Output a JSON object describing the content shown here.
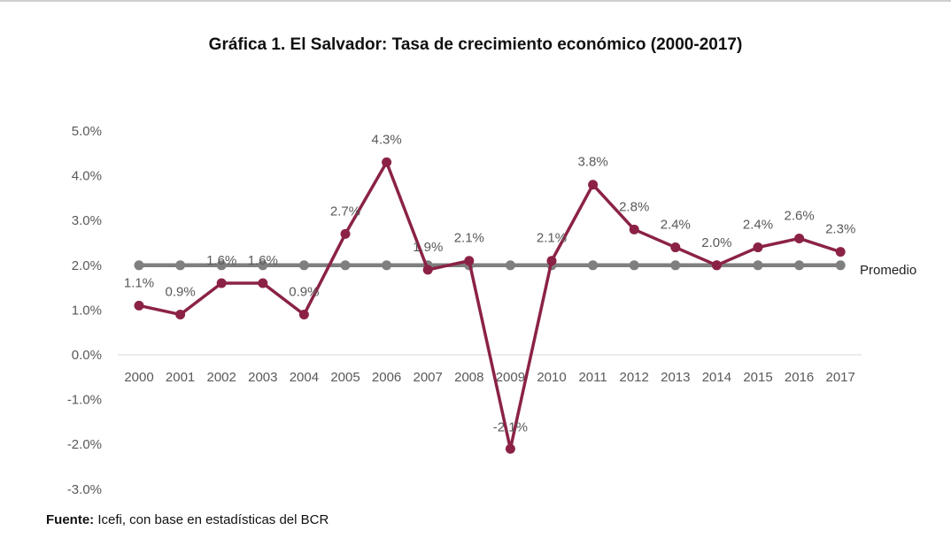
{
  "chart_data": {
    "type": "line",
    "title": "Gráfica 1. El Salvador: Tasa de crecimiento económico (2000-2017)",
    "categories": [
      "2000",
      "2001",
      "2002",
      "2003",
      "2004",
      "2005",
      "2006",
      "2007",
      "2008",
      "2009",
      "2010",
      "2011",
      "2012",
      "2013",
      "2014",
      "2015",
      "2016",
      "2017"
    ],
    "series": [
      {
        "values": [
          1.1,
          0.9,
          1.6,
          1.6,
          0.9,
          2.7,
          4.3,
          1.9,
          2.1,
          -2.1,
          2.1,
          3.8,
          2.8,
          2.4,
          2.0,
          2.4,
          2.6,
          2.3
        ],
        "color": "#8b2246",
        "labels": [
          "1.1%",
          "0.9%",
          "1.6%",
          "1.6%",
          "0.9%",
          "2.7%",
          "4.3%",
          "1.9%",
          "2.1%",
          "-2.1%",
          "2.1%",
          "3.8%",
          "2.8%",
          "2.4%",
          "2.0%",
          "2.4%",
          "2.6%",
          "2.3%"
        ]
      },
      {
        "name": "Promedio",
        "values": [
          2.0,
          2.0,
          2.0,
          2.0,
          2.0,
          2.0,
          2.0,
          2.0,
          2.0,
          2.0,
          2.0,
          2.0,
          2.0,
          2.0,
          2.0,
          2.0,
          2.0,
          2.0
        ],
        "color": "#7f7f7f"
      }
    ],
    "yticks": [
      "5.0%",
      "4.0%",
      "3.0%",
      "2.0%",
      "1.0%",
      "0.0%",
      "-1.0%",
      "-2.0%",
      "-3.0%"
    ],
    "ylim": [
      -3,
      5
    ],
    "grid": false,
    "legend": "inline-right"
  },
  "footer": {
    "source_label": "Fuente:",
    "source_text": " Icefi, con base en estadísticas del BCR"
  }
}
